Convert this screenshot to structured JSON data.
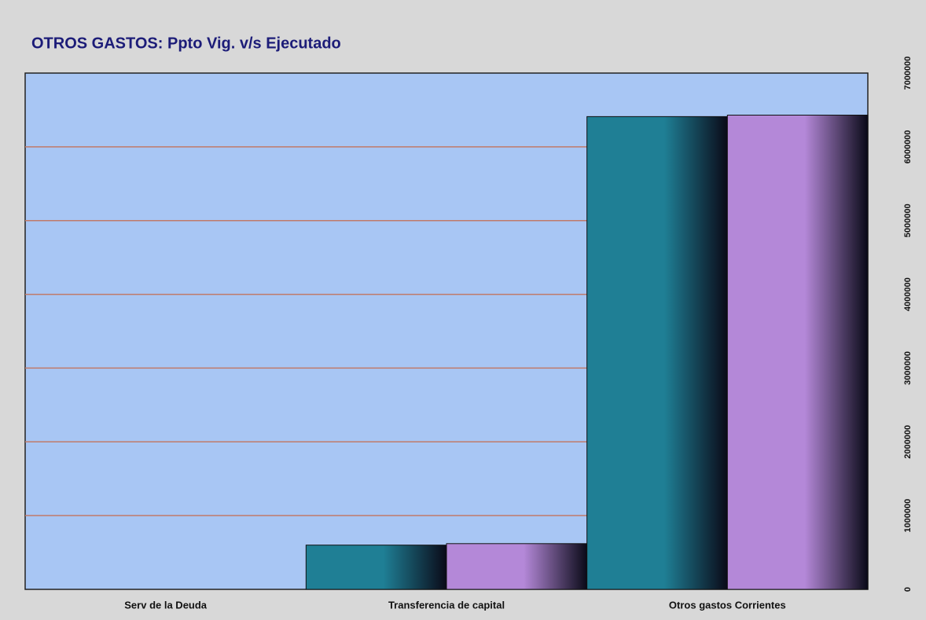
{
  "chart_data": {
    "type": "bar",
    "title": "OTROS GASTOS: Ppto Vig. v/s Ejecutado",
    "categories": [
      "Serv de la Deuda",
      "Transferencia de capital",
      "Otros gastos Corrientes"
    ],
    "series": [
      {
        "color": "#1f7f95",
        "values": [
          0,
          600000,
          6410000
        ]
      },
      {
        "color": "#b488d8",
        "values": [
          0,
          620000,
          6430000
        ]
      }
    ],
    "ylim": [
      0,
      7000000
    ],
    "yticks": [
      0,
      1000000,
      2000000,
      3000000,
      4000000,
      5000000,
      6000000,
      7000000
    ],
    "grid": true
  }
}
